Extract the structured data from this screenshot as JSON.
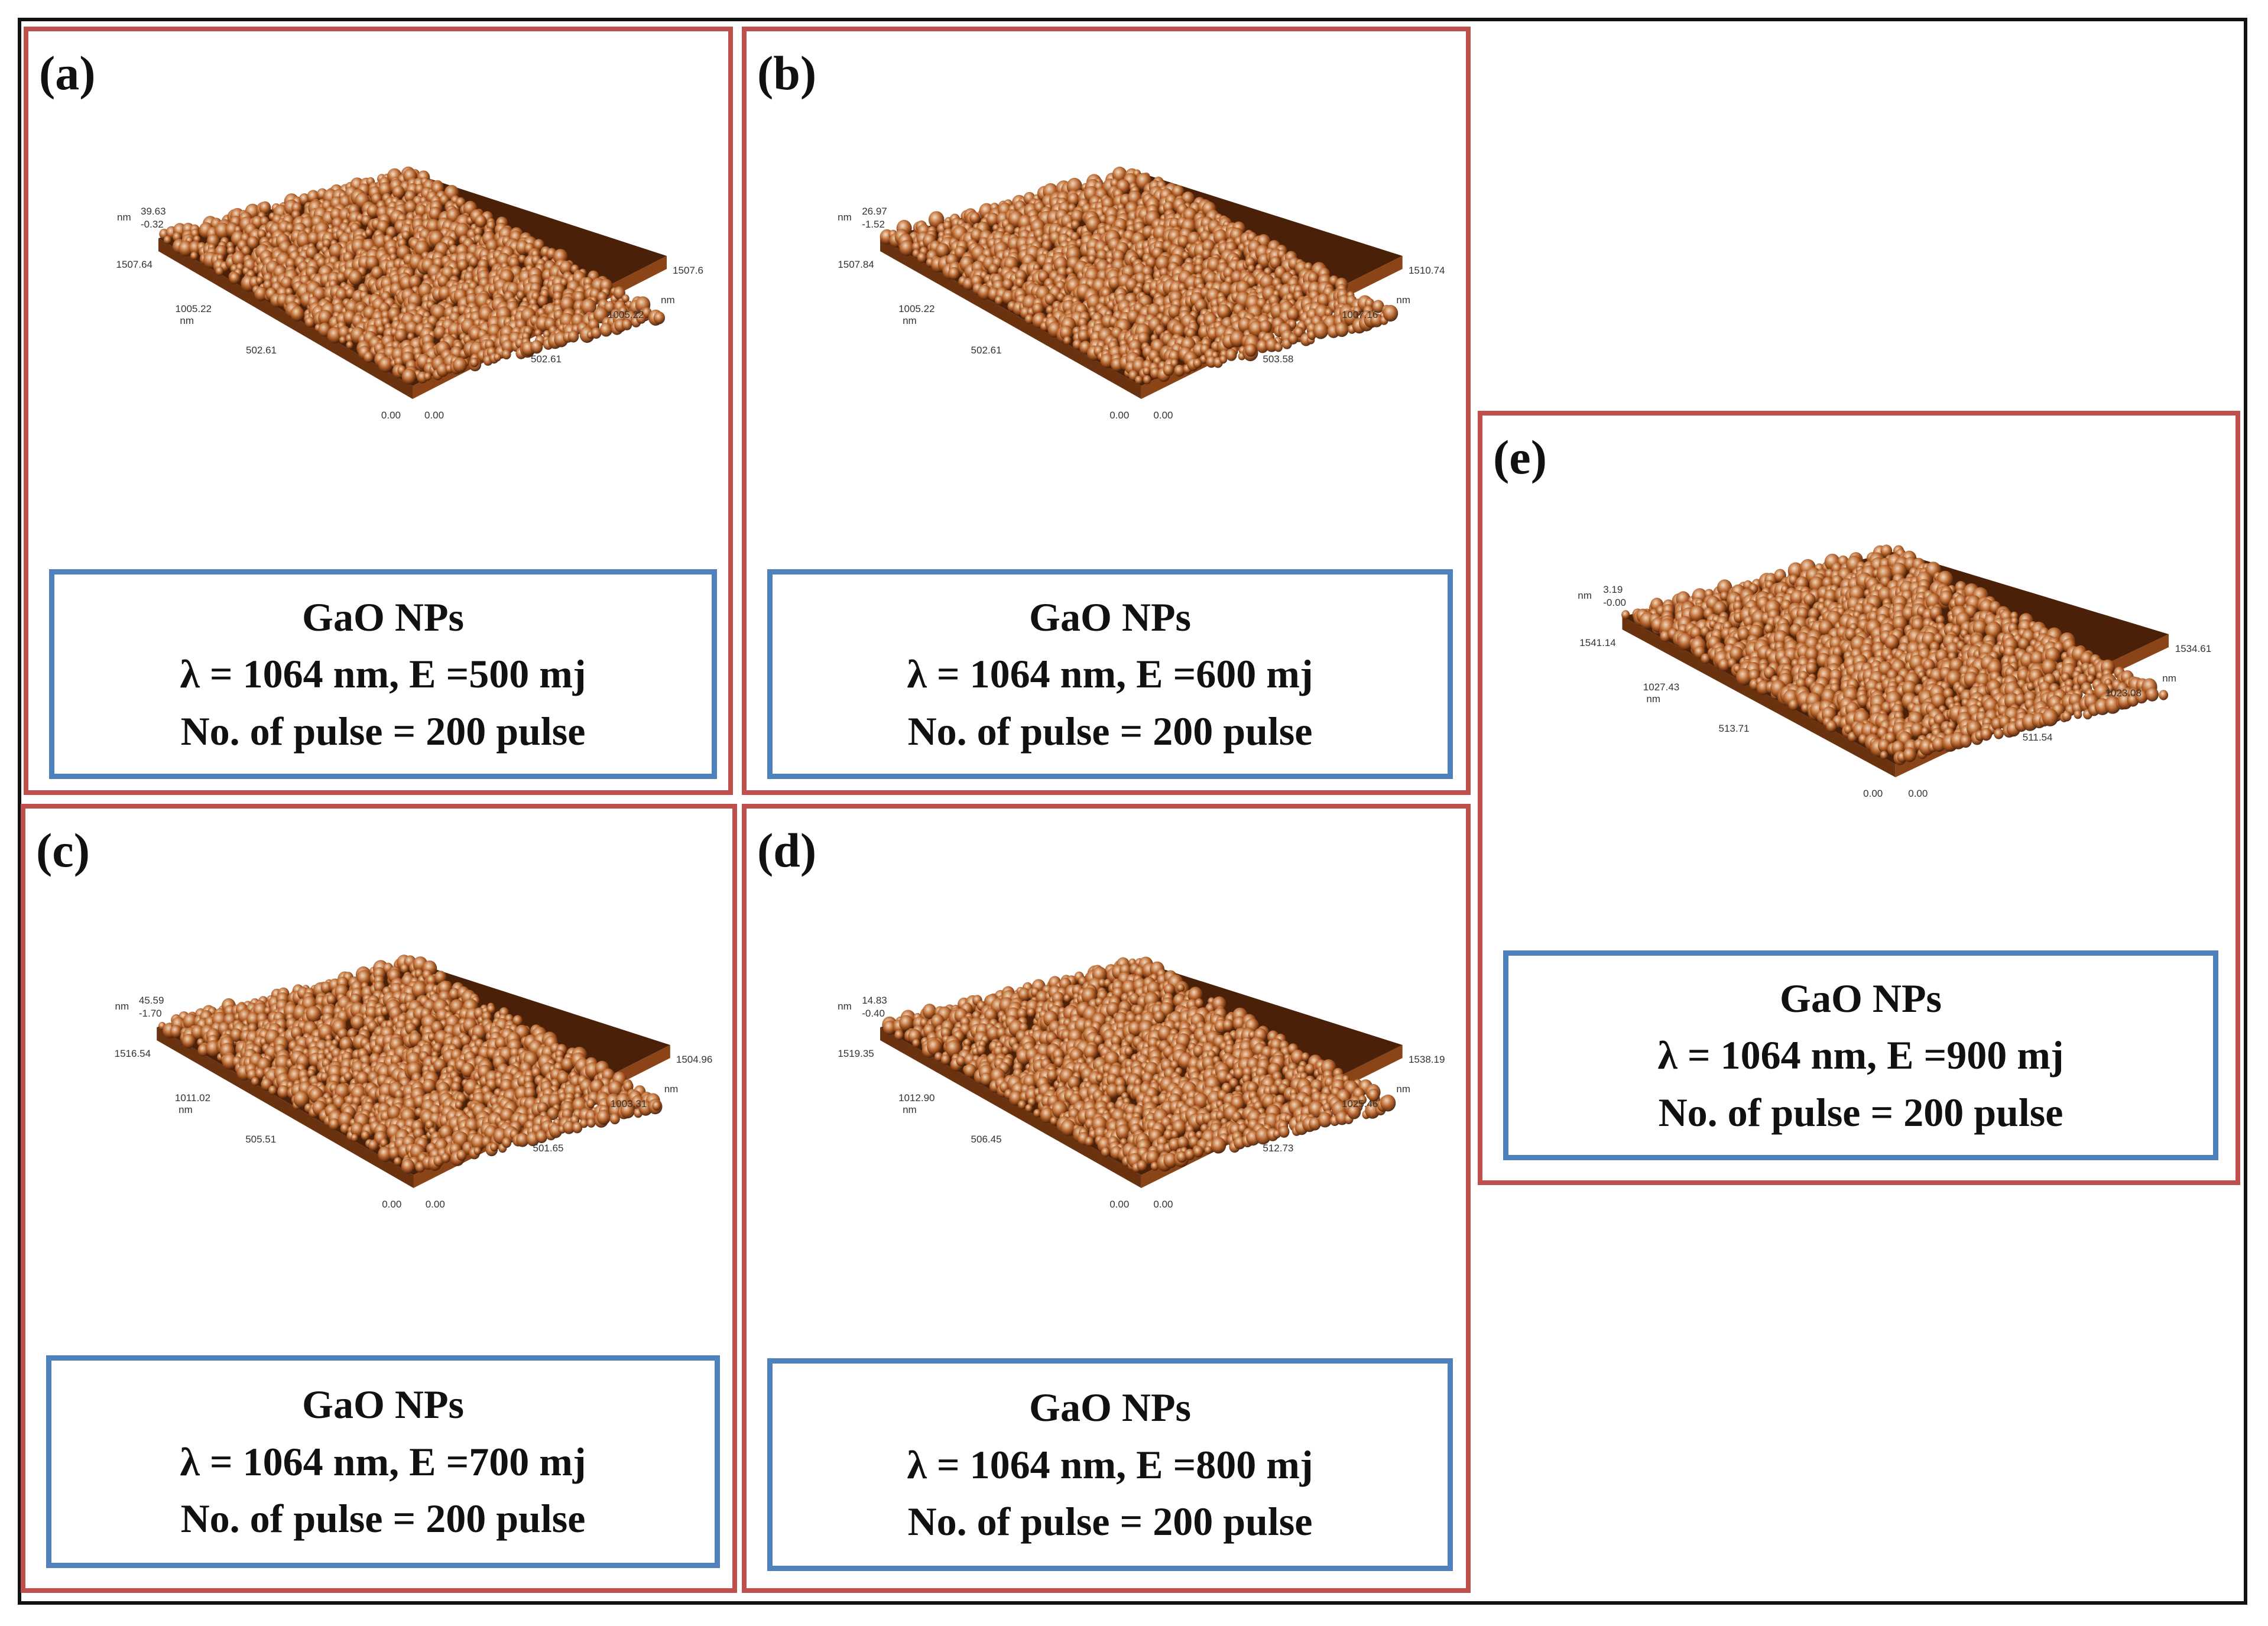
{
  "colors": {
    "panel_border": "#c0504d",
    "caption_border": "#4f81bd",
    "afm_dark": "#4a2008",
    "afm_mid": "#b8632a",
    "afm_light": "#f6dcc0"
  },
  "panels": [
    {
      "label": "(a)",
      "caption": {
        "line1": "GaO NPs",
        "line2": "λ = 1064 nm, E =500 mj",
        "line3": "No. of pulse = 200 pulse"
      },
      "afm_axes": {
        "z_unit": "nm",
        "z_max": "39.63",
        "z_min": "-0.32",
        "y_unit": "nm",
        "y_ticks": [
          "1507.64",
          "1005.22",
          "502.61"
        ],
        "x_unit": "nm",
        "x_ticks": [
          "1507.6",
          "1005.22",
          "502.61"
        ],
        "origin_y": "0.00",
        "origin_x": "0.00"
      }
    },
    {
      "label": "(b)",
      "caption": {
        "line1": "GaO NPs",
        "line2": "λ = 1064 nm, E =600 mj",
        "line3": "No. of pulse = 200 pulse"
      },
      "afm_axes": {
        "z_unit": "nm",
        "z_max": "26.97",
        "z_min": "-1.52",
        "y_unit": "nm",
        "y_ticks": [
          "1507.84",
          "1005.22",
          "502.61"
        ],
        "x_unit": "nm",
        "x_ticks": [
          "1510.74",
          "1007.16",
          "503.58"
        ],
        "origin_y": "0.00",
        "origin_x": "0.00"
      }
    },
    {
      "label": "(c)",
      "caption": {
        "line1": "GaO NPs",
        "line2": "λ = 1064 nm, E =700 mj",
        "line3": "No. of pulse = 200 pulse"
      },
      "afm_axes": {
        "z_unit": "nm",
        "z_max": "45.59",
        "z_min": "-1.70",
        "y_unit": "nm",
        "y_ticks": [
          "1516.54",
          "1011.02",
          "505.51"
        ],
        "x_unit": "nm",
        "x_ticks": [
          "1504.96",
          "1003.31",
          "501.65"
        ],
        "origin_y": "0.00",
        "origin_x": "0.00"
      }
    },
    {
      "label": "(d)",
      "caption": {
        "line1": "GaO NPs",
        "line2": "λ = 1064 nm, E =800 mj",
        "line3": "No. of pulse = 200 pulse"
      },
      "afm_axes": {
        "z_unit": "nm",
        "z_max": "14.83",
        "z_min": "-0.40",
        "y_unit": "nm",
        "y_ticks": [
          "1519.35",
          "1012.90",
          "506.45"
        ],
        "x_unit": "nm",
        "x_ticks": [
          "1538.19",
          "1025.46",
          "512.73"
        ],
        "origin_y": "0.00",
        "origin_x": "0.00"
      }
    },
    {
      "label": "(e)",
      "caption": {
        "line1": "GaO NPs",
        "line2": "λ = 1064 nm, E =900 mj",
        "line3": "No. of pulse = 200 pulse"
      },
      "afm_axes": {
        "z_unit": "nm",
        "z_max": "3.19",
        "z_min": "-0.00",
        "y_unit": "nm",
        "y_ticks": [
          "1541.14",
          "1027.43",
          "513.71"
        ],
        "x_unit": "nm",
        "x_ticks": [
          "1534.61",
          "1023.08",
          "511.54"
        ],
        "origin_y": "0.00",
        "origin_x": "0.00"
      }
    }
  ]
}
